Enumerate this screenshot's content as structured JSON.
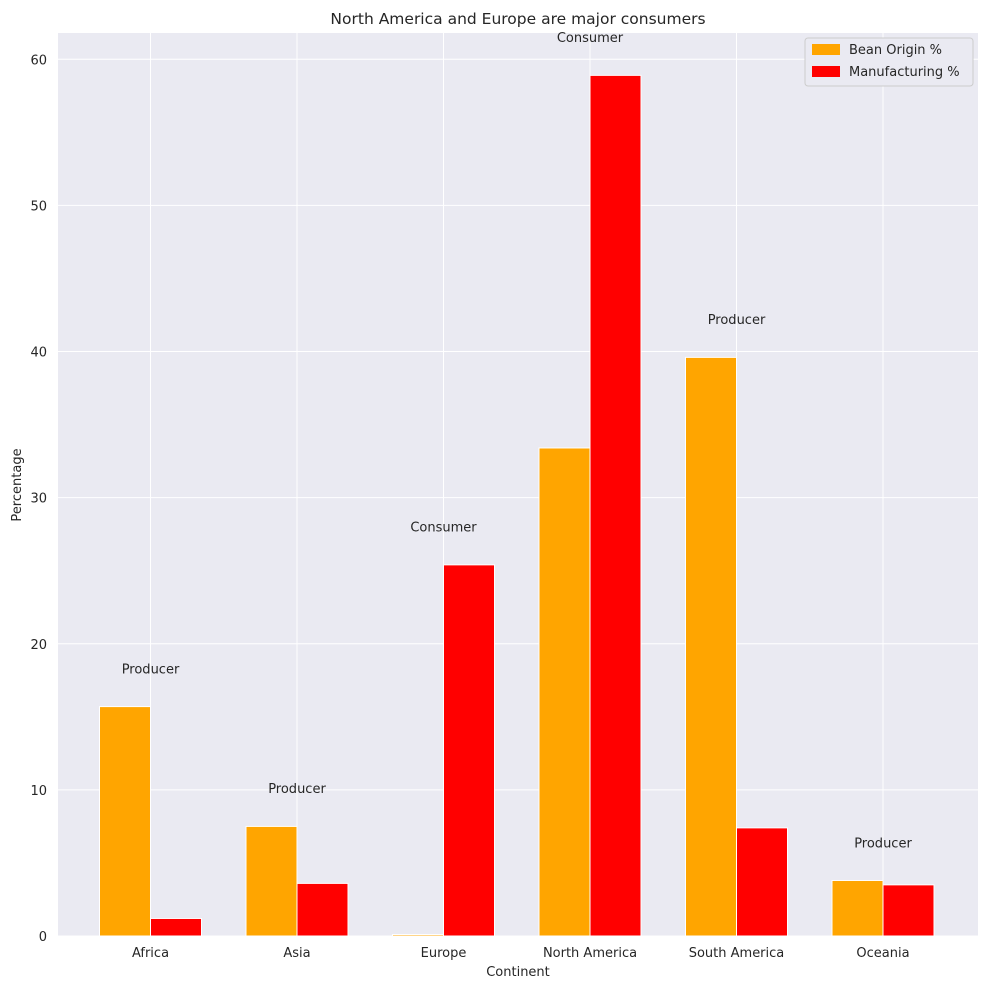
{
  "chart_data": {
    "type": "bar",
    "title": "North America and Europe are major consumers",
    "xlabel": "Continent",
    "ylabel": "Percentage",
    "categories": [
      "Africa",
      "Asia",
      "Europe",
      "North America",
      "South America",
      "Oceania"
    ],
    "series": [
      {
        "name": "Bean Origin %",
        "color": "#FFA500",
        "values": [
          15.7,
          7.5,
          0.1,
          33.4,
          39.6,
          3.8
        ]
      },
      {
        "name": "Manufacturing %",
        "color": "#FF0000",
        "values": [
          1.2,
          3.6,
          25.4,
          58.9,
          7.4,
          3.5
        ]
      }
    ],
    "annotations": [
      "Producer",
      "Producer",
      "Consumer",
      "Consumer",
      "Producer",
      "Producer"
    ],
    "ylim": [
      0,
      61.8
    ],
    "yticks": [
      0,
      10,
      20,
      30,
      40,
      50,
      60
    ],
    "grid": true,
    "legend": "top-right",
    "background": "#EAEAF2",
    "grid_color": "#FFFFFF"
  }
}
